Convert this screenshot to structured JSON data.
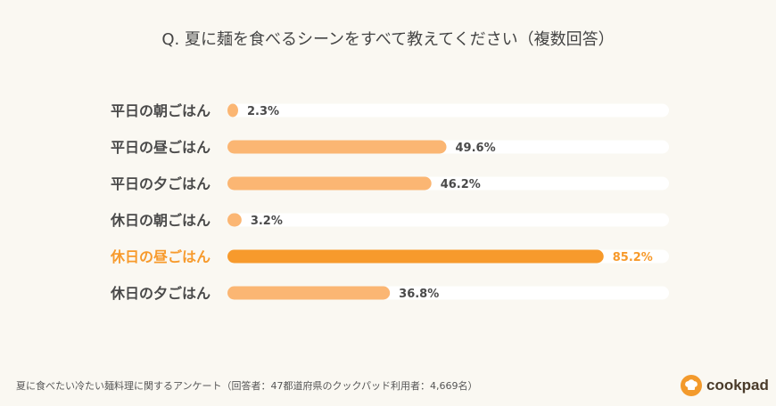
{
  "chart_data": {
    "type": "bar",
    "title": "Q. 夏に麺を食べるシーンをすべて教えてください（複数回答）",
    "categories": [
      "平日の朝ごはん",
      "平日の昼ごはん",
      "平日の夕ごはん",
      "休日の朝ごはん",
      "休日の昼ごはん",
      "休日の夕ごはん"
    ],
    "values": [
      2.3,
      49.6,
      46.2,
      3.2,
      85.2,
      36.8
    ],
    "value_labels": [
      "2.3%",
      "49.6%",
      "46.2%",
      "3.2%",
      "85.2%",
      "36.8%"
    ],
    "xlim": [
      0,
      100
    ],
    "highlight_index": 4,
    "colors": {
      "bar": "#fbb673",
      "highlight": "#f79a2c",
      "track": "#ffffff",
      "label": "#4a4a4a",
      "highlight_label": "#f79a2c"
    }
  },
  "footer": {
    "source": "夏に食べたい冷たい麺料理に関するアンケート（回答者：47都道府県のクックパッド利用者：4,669名）"
  },
  "logo": {
    "text": "cookpad",
    "icon": "chef-hat-icon",
    "color": "#f39a2c"
  }
}
